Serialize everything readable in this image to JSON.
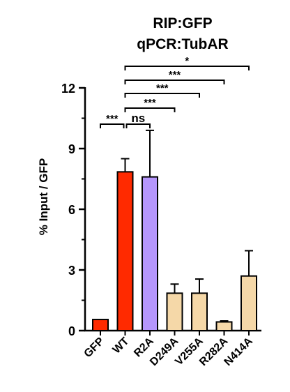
{
  "chart_data": {
    "type": "bar",
    "title": "RIP:GFP",
    "subtitle": "qPCR:TubAR",
    "ylabel": "% Input / GFP",
    "xlabel": "",
    "ylim": [
      0,
      12
    ],
    "yticks": [
      "0",
      "3",
      "6",
      "9",
      "12"
    ],
    "categories": [
      "GFP",
      "WT",
      "R2A",
      "D249A",
      "V255A",
      "R282A",
      "N414A"
    ],
    "values": [
      0.55,
      7.85,
      7.6,
      1.85,
      1.85,
      0.43,
      2.7
    ],
    "errors": [
      0,
      0.65,
      2.3,
      0.45,
      0.7,
      0.05,
      1.25
    ],
    "colors": [
      "#ff2a00",
      "#ff2a00",
      "#b596fb",
      "#f5d8a8",
      "#f5d8a8",
      "#f5d8a8",
      "#f5d8a8"
    ],
    "significance": [
      {
        "from": "GFP",
        "to": "WT",
        "label": "***"
      },
      {
        "from": "WT",
        "to": "R2A",
        "label": "ns"
      },
      {
        "from": "WT",
        "to": "D249A",
        "label": "***"
      },
      {
        "from": "WT",
        "to": "V255A",
        "label": "***"
      },
      {
        "from": "WT",
        "to": "R282A",
        "label": "***"
      },
      {
        "from": "WT",
        "to": "N414A",
        "label": "*"
      }
    ]
  }
}
